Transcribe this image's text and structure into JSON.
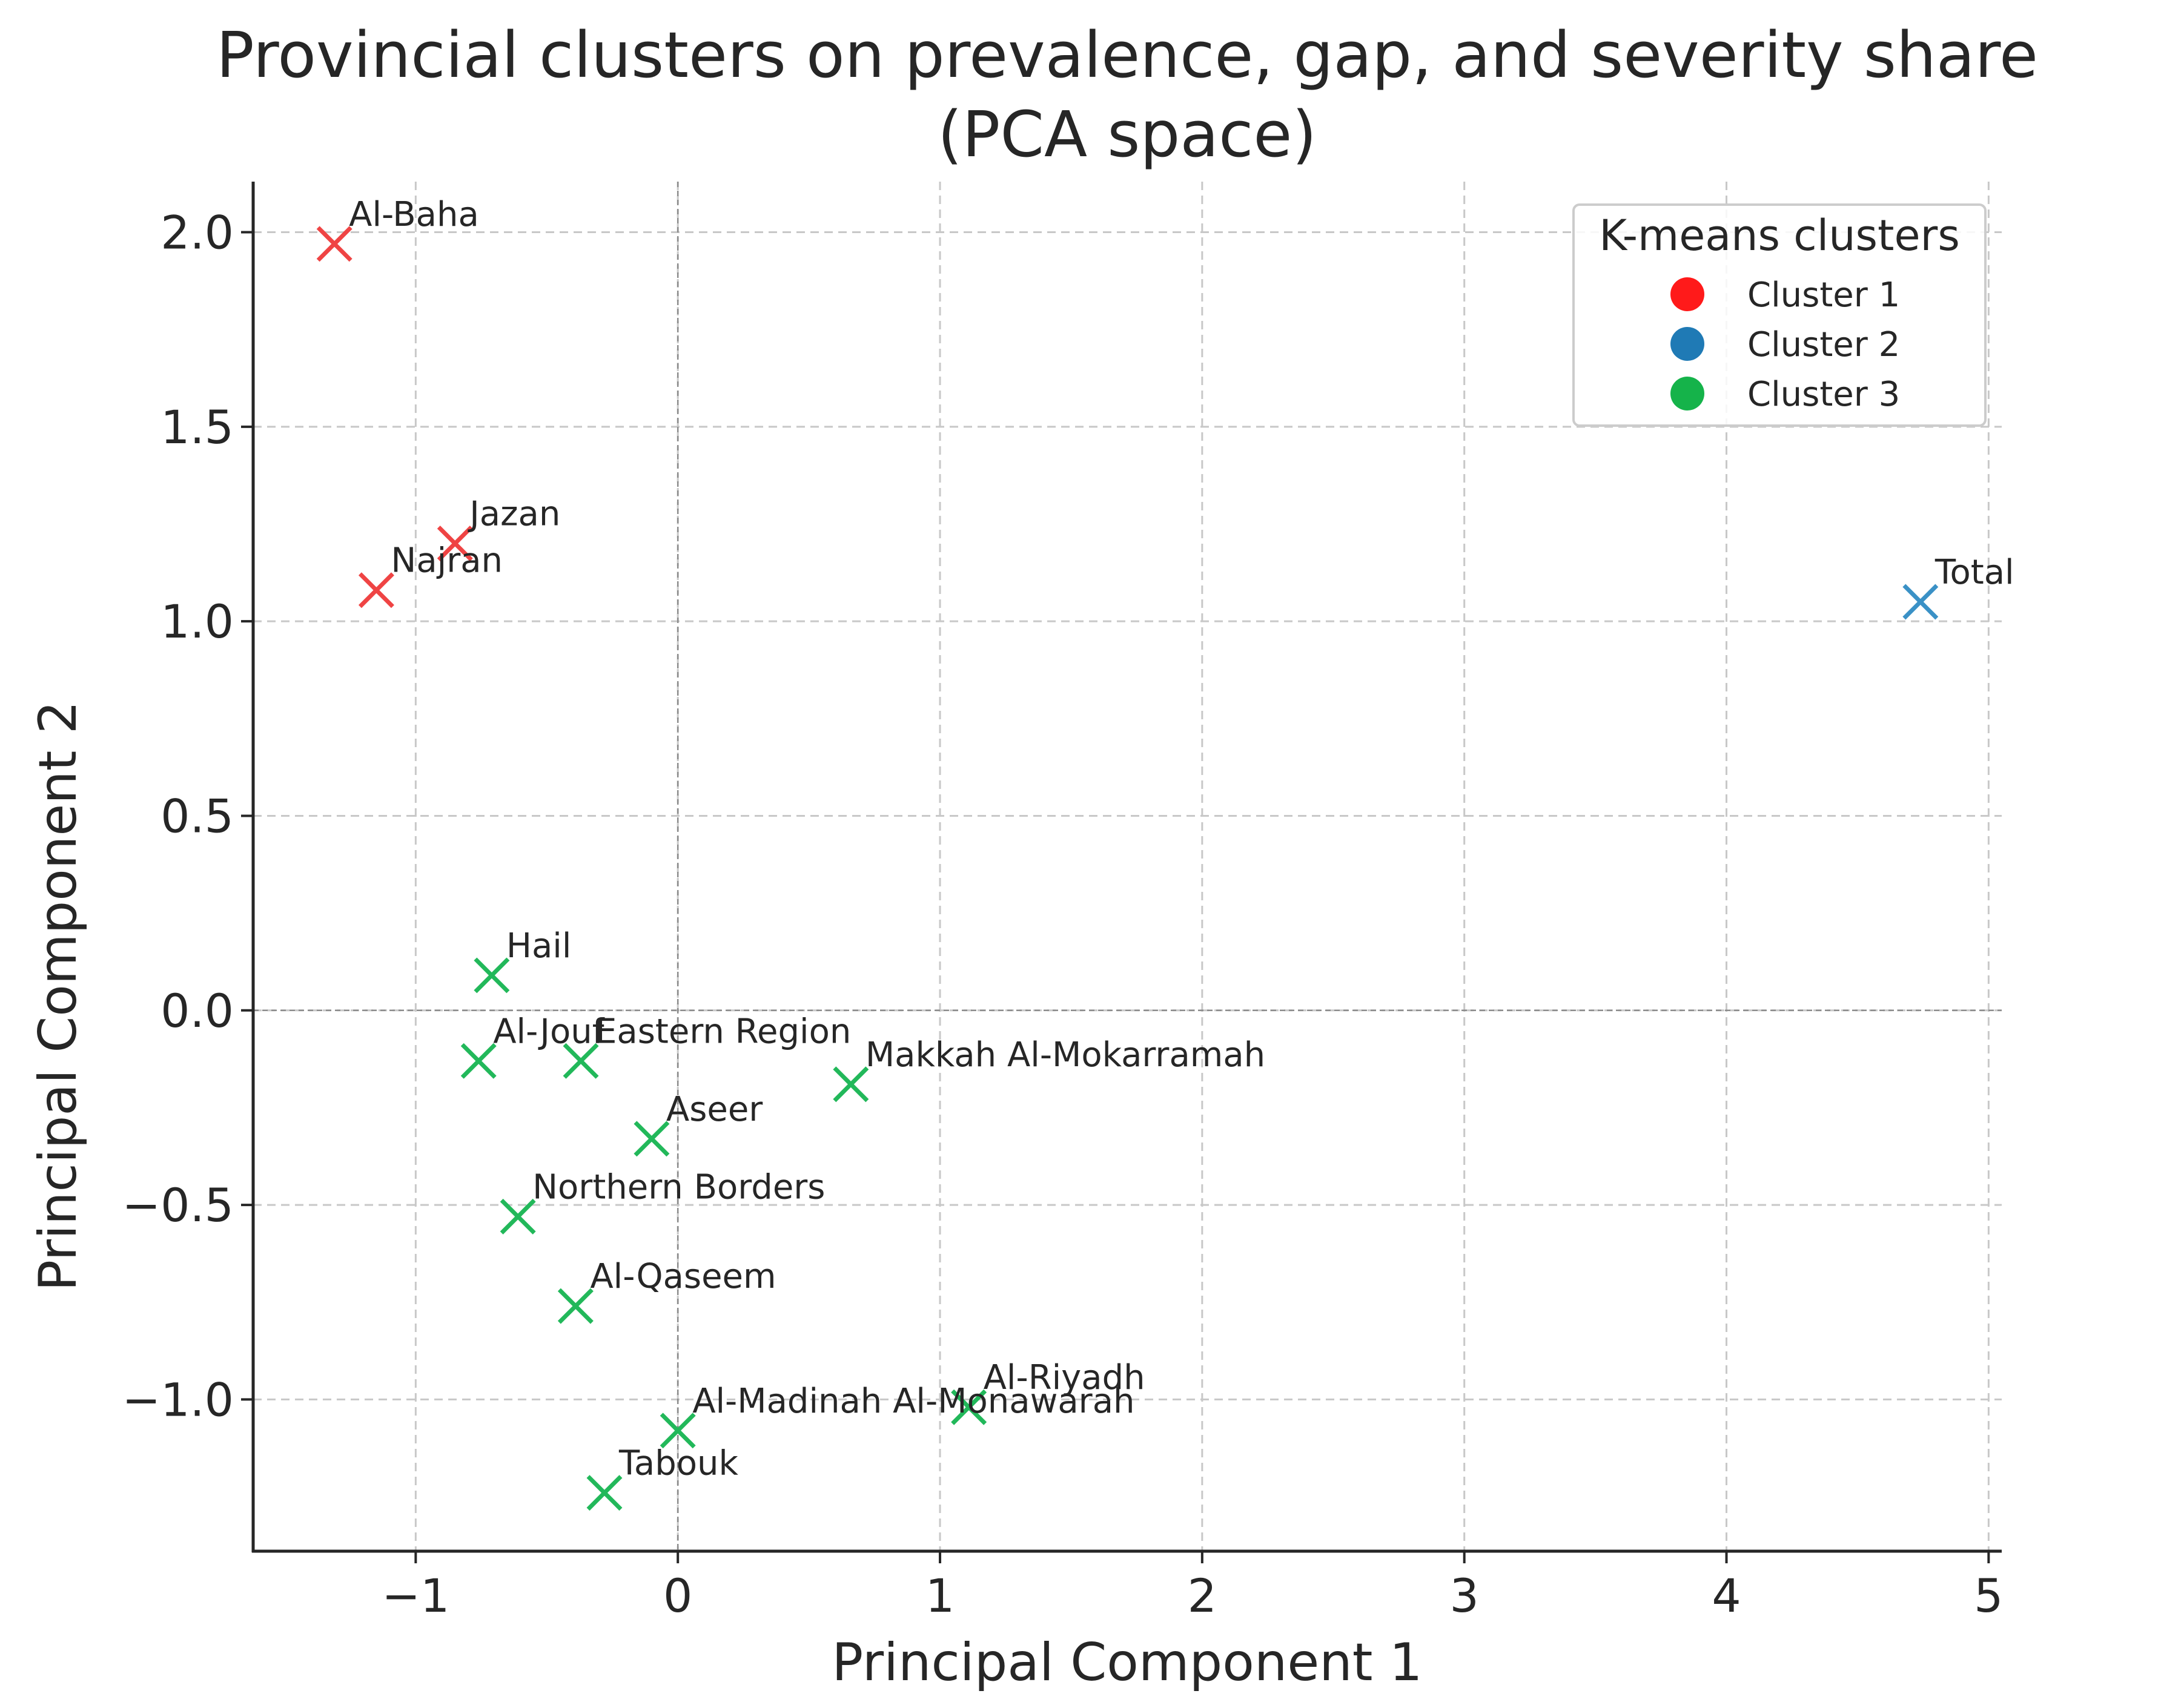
{
  "chart_data": {
    "type": "scatter",
    "title": "Provincial clusters on prevalence, gap, and severity share",
    "subtitle": "(PCA space)",
    "xlabel": "Principal Component 1",
    "ylabel": "Principal Component 2",
    "xlim": [
      -1.62,
      5.05
    ],
    "ylim": [
      -1.39,
      2.13
    ],
    "xticks": [
      -1,
      0,
      1,
      2,
      3,
      4,
      5
    ],
    "xtick_labels": [
      "−1",
      "0",
      "1",
      "2",
      "3",
      "4",
      "5"
    ],
    "yticks": [
      -1.0,
      -0.5,
      0.0,
      0.5,
      1.0,
      1.5,
      2.0
    ],
    "ytick_labels": [
      "−1.0",
      "−0.5",
      "0.0",
      "0.5",
      "1.0",
      "1.5",
      "2.0"
    ],
    "grid": true,
    "marker": "x",
    "legend": {
      "title": "K-means clusters",
      "position": "top-right",
      "entries": [
        {
          "name": "Cluster 1",
          "color": "#ff1a1a"
        },
        {
          "name": "Cluster 2",
          "color": "#1f7ab5"
        },
        {
          "name": "Cluster 3",
          "color": "#15b34a"
        }
      ]
    },
    "cluster_colors": {
      "1": "#ef4444",
      "2": "#3a91c6",
      "3": "#22b85a"
    },
    "points": [
      {
        "label": "Al-Baha",
        "x": -1.31,
        "y": 1.97,
        "cluster": 1
      },
      {
        "label": "Jazan",
        "x": -0.85,
        "y": 1.2,
        "cluster": 1
      },
      {
        "label": "Najran",
        "x": -1.15,
        "y": 1.08,
        "cluster": 1
      },
      {
        "label": "Total",
        "x": 4.74,
        "y": 1.05,
        "cluster": 2
      },
      {
        "label": "Hail",
        "x": -0.71,
        "y": 0.09,
        "cluster": 3
      },
      {
        "label": "Al-Jouf",
        "x": -0.76,
        "y": -0.13,
        "cluster": 3
      },
      {
        "label": "Eastern Region",
        "x": -0.37,
        "y": -0.13,
        "cluster": 3
      },
      {
        "label": "Makkah Al-Mokarramah",
        "x": 0.66,
        "y": -0.19,
        "cluster": 3
      },
      {
        "label": "Aseer",
        "x": -0.1,
        "y": -0.33,
        "cluster": 3
      },
      {
        "label": "Northern Borders",
        "x": -0.61,
        "y": -0.53,
        "cluster": 3
      },
      {
        "label": "Al-Qaseem",
        "x": -0.39,
        "y": -0.76,
        "cluster": 3
      },
      {
        "label": "Al-Riyadh",
        "x": 1.11,
        "y": -1.02,
        "cluster": 3
      },
      {
        "label": "Al-Madinah Al-Monawarah",
        "x": 0.0,
        "y": -1.08,
        "cluster": 3
      },
      {
        "label": "Tabouk",
        "x": -0.28,
        "y": -1.24,
        "cluster": 3
      }
    ]
  }
}
